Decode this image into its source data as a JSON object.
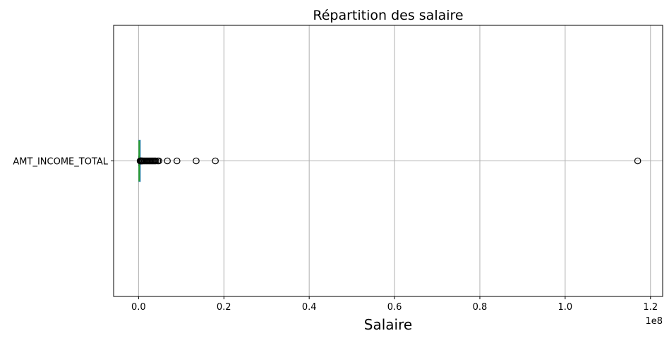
{
  "chart_data": {
    "type": "boxplot",
    "orientation": "horizontal",
    "title": "Répartition des salaire",
    "xlabel": "Salaire",
    "ylabel": "",
    "x_offset_label": "1e8",
    "xlim": [
      -5850000,
      122850000
    ],
    "x_ticks": [
      0,
      20000000,
      40000000,
      60000000,
      80000000,
      100000000,
      120000000
    ],
    "x_tick_labels": [
      "0.0",
      "0.2",
      "0.4",
      "0.6",
      "0.8",
      "1.0",
      "1.2"
    ],
    "grid": true,
    "categories": [
      "AMT_INCOME_TOTAL"
    ],
    "boxes": [
      {
        "name": "AMT_INCOME_TOTAL",
        "whisker_low": 25650,
        "q1": 112500,
        "median": 147150,
        "q3": 202500,
        "whisker_high": 337500,
        "outliers": [
          360000,
          405000,
          450000,
          540000,
          630000,
          720000,
          810000,
          900000,
          1125000,
          1350000,
          1575000,
          1800000,
          2025000,
          2250000,
          2475000,
          2700000,
          2925000,
          3150000,
          3375000,
          3600000,
          3825000,
          4050000,
          4500000,
          4750000,
          6750000,
          9000000,
          13500000,
          18000000,
          117000000
        ]
      }
    ],
    "colors": {
      "box": "#1f77b4",
      "median": "#2ca02c",
      "whisker": "#000000",
      "outlier_edge": "#000000",
      "grid": "#b0b0b0",
      "spine": "#000000"
    }
  }
}
